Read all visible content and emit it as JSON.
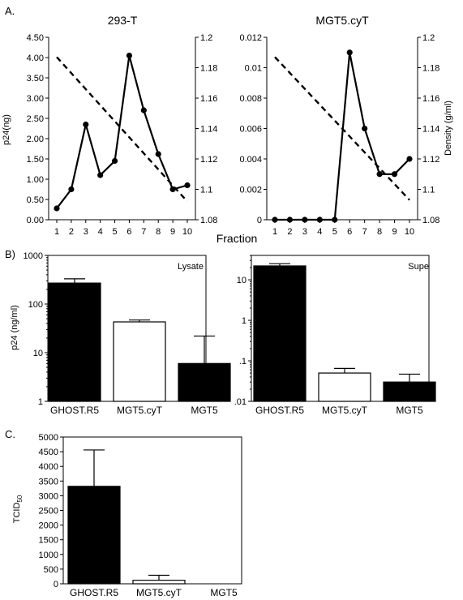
{
  "figure": {
    "xlabel_shared": "Fraction"
  },
  "chart_data": [
    {
      "id": "A1",
      "panel_label": "A.",
      "type": "line",
      "title": "293-T",
      "xlabel": "",
      "ylabel": "p24(ng)",
      "y2label": "",
      "x": [
        1,
        2,
        3,
        4,
        5,
        6,
        7,
        8,
        9,
        10
      ],
      "xticks": [
        "1",
        "2",
        "3",
        "4",
        "5",
        "6",
        "7",
        "8",
        "9",
        "10"
      ],
      "ylim": [
        0,
        4.5
      ],
      "yticks": [
        "0.00",
        "0.50",
        "1.00",
        "1.50",
        "2.00",
        "2.50",
        "3.00",
        "3.50",
        "4.00",
        "4.50"
      ],
      "y2lim": [
        1.08,
        1.2
      ],
      "y2ticks": [
        "1.08",
        "1.1",
        "1.12",
        "1.14",
        "1.16",
        "1.18",
        "1.2"
      ],
      "series": [
        {
          "axis": "left",
          "style": "solid-markers",
          "values": [
            0.28,
            0.75,
            2.35,
            1.1,
            1.45,
            4.05,
            2.7,
            1.62,
            0.75,
            0.85
          ]
        },
        {
          "axis": "right",
          "style": "dashed",
          "values": [
            1.187,
            null,
            null,
            null,
            null,
            null,
            null,
            null,
            null,
            1.092
          ]
        }
      ]
    },
    {
      "id": "A2",
      "panel_label": "",
      "type": "line",
      "title": "MGT5.cyT",
      "xlabel": "",
      "ylabel": "",
      "y2label": "Density (g/ml)",
      "x": [
        1,
        2,
        3,
        4,
        5,
        6,
        7,
        8,
        9,
        10
      ],
      "xticks": [
        "1",
        "2",
        "3",
        "4",
        "5",
        "6",
        "7",
        "8",
        "9",
        "10"
      ],
      "ylim": [
        0,
        0.012
      ],
      "yticks": [
        "0",
        "0.002",
        "0.004",
        "0.006",
        "0.008",
        "0.01",
        "0.012"
      ],
      "y2lim": [
        1.08,
        1.2
      ],
      "y2ticks": [
        "1.08",
        "1.1",
        "1.12",
        "1.14",
        "1.16",
        "1.18",
        "1.2"
      ],
      "series": [
        {
          "axis": "left",
          "style": "solid-markers",
          "values": [
            0,
            0,
            0,
            0,
            0,
            0.011,
            0.006,
            0.003,
            0.003,
            0.004
          ]
        },
        {
          "axis": "right",
          "style": "dashed",
          "values": [
            1.187,
            null,
            null,
            null,
            null,
            null,
            null,
            null,
            null,
            1.093
          ]
        }
      ]
    },
    {
      "id": "B1",
      "panel_label": "B)",
      "type": "bar",
      "title": "Lysate",
      "ylabel": "p24 (ng/ml)",
      "yscale": "log",
      "categories": [
        "GHOST.R5",
        "MGT5.cyT",
        "MGT5"
      ],
      "values": [
        270,
        43,
        6
      ],
      "errors_upper": [
        330,
        47,
        22
      ],
      "colors": [
        "#000000",
        "#ffffff",
        "#000000"
      ],
      "ylim": [
        1,
        1000
      ],
      "yticks": [
        "1",
        "10",
        "100",
        "1000"
      ]
    },
    {
      "id": "B2",
      "panel_label": "",
      "type": "bar",
      "title": "Supe",
      "ylabel": "",
      "yscale": "log",
      "categories": [
        "GHOST.R5",
        "MGT5.cyT",
        "MGT5"
      ],
      "values": [
        22,
        0.05,
        0.03
      ],
      "errors_upper": [
        25,
        0.065,
        0.047
      ],
      "colors": [
        "#000000",
        "#ffffff",
        "#000000"
      ],
      "ylim": [
        0.01,
        40
      ],
      "yticks": [
        ".01",
        ".1",
        "1",
        "10"
      ]
    },
    {
      "id": "C",
      "panel_label": "C.",
      "type": "bar",
      "title": "",
      "ylabel": "TCID",
      "ylabel_sub": "50",
      "yscale": "linear",
      "categories": [
        "GHOST.R5",
        "MGT5.cyT",
        "MGT5"
      ],
      "values": [
        3320,
        120,
        0
      ],
      "errors_upper": [
        4560,
        290,
        0
      ],
      "colors": [
        "#000000",
        "#ffffff",
        "#000000"
      ],
      "ylim": [
        0,
        5000
      ],
      "yticks": [
        "0",
        "500",
        "1000",
        "1500",
        "2000",
        "2500",
        "3000",
        "3500",
        "4000",
        "4500",
        "5000"
      ]
    }
  ]
}
